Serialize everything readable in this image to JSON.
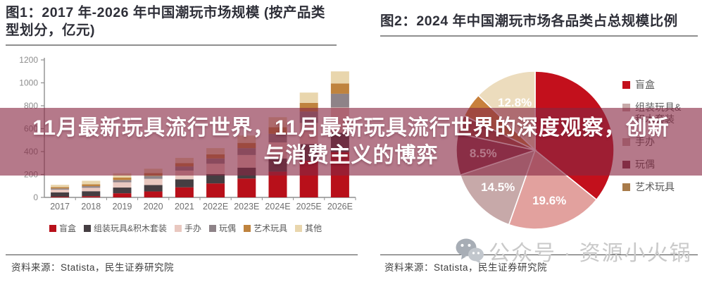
{
  "banner": {
    "line1": "11月最新玩具流行世界，11月最新玩具流行世界的深度观察，创新",
    "line2": "与消费主义的博弈",
    "overlay_color": "#882742",
    "text_color": "#ffffff"
  },
  "left_panel": {
    "title": "图1：2017 年-2026 年中国潮玩市场规模 (按产品类型划分，亿元)",
    "source": "资料来源：Statista，民生证券研究院"
  },
  "right_panel": {
    "title": "图2：2024 年中国潮玩市场各品类占总规模比例",
    "source": "资料来源：Statista，民生证券研究院",
    "watermark": "公众号 · 资源小火锅",
    "watermark_icon": "wechat-icon"
  },
  "chart_data": [
    {
      "type": "bar",
      "stacked": true,
      "title": "2017 年-2026 年中国潮玩市场规模 (按产品类型划分，亿元)",
      "categories": [
        "2017",
        "2018",
        "2019",
        "2020",
        "2021",
        "2022E",
        "2023E",
        "2024E",
        "2025E",
        "2026E"
      ],
      "series": [
        {
          "name": "盲盒",
          "color": "#b8101a",
          "values": [
            6,
            10,
            36,
            52,
            88,
            122,
            165,
            225,
            320,
            395
          ]
        },
        {
          "name": "组装玩具&积木套装",
          "color": "#453e42",
          "values": [
            38,
            44,
            50,
            56,
            70,
            82,
            95,
            115,
            145,
            170
          ]
        },
        {
          "name": "手办",
          "color": "#e9c8c0",
          "values": [
            24,
            30,
            46,
            54,
            76,
            90,
            110,
            140,
            185,
            220
          ]
        },
        {
          "name": "玩偶",
          "color": "#8e8388",
          "values": [
            10,
            14,
            20,
            26,
            36,
            46,
            60,
            75,
            100,
            120
          ]
        },
        {
          "name": "艺术玩具",
          "color": "#bf833e",
          "values": [
            12,
            16,
            22,
            24,
            30,
            36,
            46,
            58,
            75,
            90
          ]
        },
        {
          "name": "其他",
          "color": "#e9d6ad",
          "values": [
            20,
            31,
            36,
            38,
            45,
            54,
            64,
            87,
            90,
            105
          ]
        }
      ],
      "totals": [
        110,
        145,
        210,
        250,
        345,
        430,
        540,
        700,
        915,
        1100
      ],
      "ylabel": "亿元",
      "ylim": [
        0,
        1200
      ],
      "ytick_step": 200,
      "grid": false,
      "legend_position": "bottom"
    },
    {
      "type": "pie",
      "title": "2024 年中国潮玩市场各品类占总规模比例",
      "direction": "clockwise",
      "start_angle_deg": 0,
      "slices": [
        {
          "label": "盲盒",
          "value": 35.8,
          "color": "#c3101c",
          "data_label": ""
        },
        {
          "label": "手办",
          "value": 19.6,
          "color": "#e2a19e",
          "data_label": "19.6%"
        },
        {
          "label": "组装玩具&积木套装",
          "value": 14.5,
          "color": "#c7a9a9",
          "data_label": "14.5%"
        },
        {
          "label": "玩偶",
          "value": 8.5,
          "color": "#8e3c4c",
          "data_label": "8.5%"
        },
        {
          "label": "",
          "value": 3.8,
          "color": "#9e4a40",
          "data_label": ""
        },
        {
          "label": "艺术玩具",
          "value": 5.0,
          "color": "#c8803c",
          "data_label": ""
        },
        {
          "label": "其他",
          "value": 12.8,
          "color": "#ecdcbd",
          "data_label": "12.8%"
        }
      ],
      "legend_items": [
        {
          "label": "盲盒",
          "color": "#c3101c"
        },
        {
          "label": "组装玩具&积木套装",
          "color": "#c7a9a9"
        },
        {
          "label": "手办",
          "color": "#c9aaa8"
        },
        {
          "label": "玩偶",
          "color": "#7c3a4a"
        },
        {
          "label": "艺术玩具",
          "color": "#a87b4a"
        }
      ],
      "legend_position": "right"
    }
  ]
}
